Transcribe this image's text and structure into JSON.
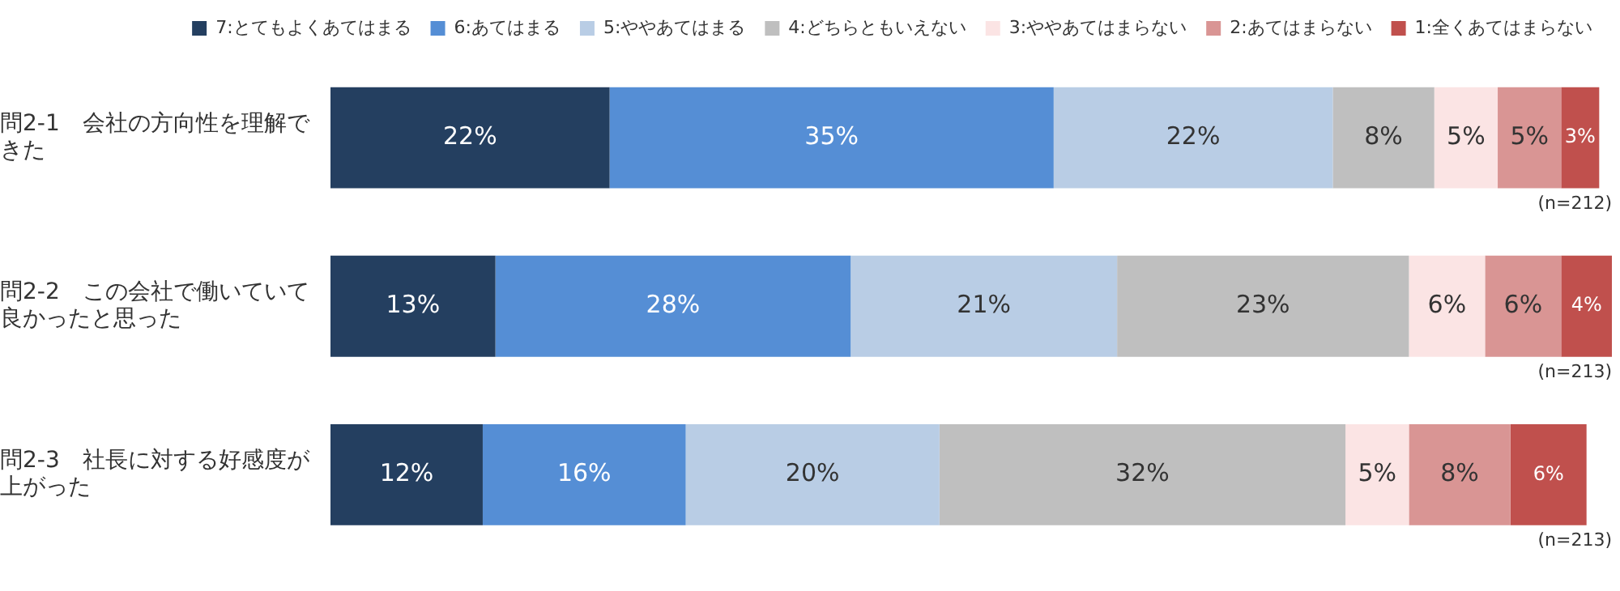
{
  "chart_data": {
    "type": "bar",
    "orientation": "horizontal",
    "stacked": true,
    "legend": "top",
    "tick_labels": "y",
    "categories": [
      "問2-1　会社の方向性を理解できた",
      "問2-2　この会社で働いていて良かったと思った",
      "問2-3　社長に対する好感度が上がった"
    ],
    "series": [
      {
        "name": "7:とてもよくあてはまる",
        "color": "#243f60",
        "values": [
          22,
          13,
          12
        ],
        "value_labels": [
          "22%",
          "13%",
          "12%"
        ]
      },
      {
        "name": "6:あてはまる",
        "color": "#558ed5",
        "values": [
          35,
          28,
          16
        ],
        "value_labels": [
          "35%",
          "28%",
          "16%"
        ]
      },
      {
        "name": "5:ややあてはまる",
        "color": "#b9cde5",
        "values": [
          22,
          21,
          20
        ],
        "value_labels": [
          "22%",
          "21%",
          "20%"
        ]
      },
      {
        "name": "4:どちらともいえない",
        "color": "#bfbfbf",
        "values": [
          8,
          23,
          32
        ],
        "value_labels": [
          "8%",
          "23%",
          "32%"
        ]
      },
      {
        "name": "3:ややあてはまらない",
        "color": "#fbe4e4",
        "values": [
          5,
          6,
          5
        ],
        "value_labels": [
          "5%",
          "6%",
          "5%"
        ]
      },
      {
        "name": "2:あてはまらない",
        "color": "#d99594",
        "values": [
          5,
          6,
          8
        ],
        "value_labels": [
          "5%",
          "6%",
          "8%"
        ]
      },
      {
        "name": "1:全くあてはまらない",
        "color": "#c0504d",
        "values": [
          3,
          4,
          6
        ],
        "value_labels": [
          "3%",
          "4%",
          "6%"
        ]
      }
    ],
    "annotations": [
      "(n=212)",
      "(n=213)",
      "(n=213)"
    ]
  }
}
